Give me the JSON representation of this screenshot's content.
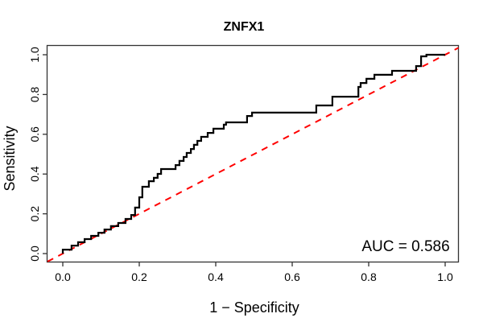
{
  "chart_data": {
    "type": "line",
    "title": "ZNFX1",
    "xlabel": "1 − Specificity",
    "ylabel": "Sensitivity",
    "annotation": "AUC = 0.586",
    "auc": 0.586,
    "xlim": [
      -0.04,
      1.04
    ],
    "ylim": [
      -0.04,
      1.04
    ],
    "grid": false,
    "legend": "none",
    "x_ticks": {
      "positions": [
        0.0,
        0.2,
        0.4,
        0.6,
        0.8,
        1.0
      ],
      "labels": [
        "0.0",
        "0.2",
        "0.4",
        "0.6",
        "0.8",
        "1.0"
      ]
    },
    "y_ticks": {
      "positions": [
        0.0,
        0.2,
        0.4,
        0.6,
        0.8,
        1.0
      ],
      "labels": [
        "0.0",
        "0.2",
        "0.4",
        "0.6",
        "0.8",
        "1.0"
      ]
    },
    "colors": {
      "roc_curve": "#000000",
      "reference_line": "#FF0000",
      "axis": "#333333",
      "text": "#000000",
      "background": "#FFFFFF"
    },
    "series": [
      {
        "name": "chance-diagonal",
        "style": "dashed",
        "color": "#FF0000",
        "points": [
          [
            -0.04,
            -0.04
          ],
          [
            1.04,
            1.04
          ]
        ]
      },
      {
        "name": "ROC curve",
        "style": "step",
        "color": "#000000",
        "points": [
          [
            0.0,
            0.0
          ],
          [
            0.0,
            0.02
          ],
          [
            0.023,
            0.02
          ],
          [
            0.023,
            0.04
          ],
          [
            0.04,
            0.04
          ],
          [
            0.04,
            0.057
          ],
          [
            0.057,
            0.057
          ],
          [
            0.057,
            0.073
          ],
          [
            0.074,
            0.073
          ],
          [
            0.074,
            0.089
          ],
          [
            0.093,
            0.089
          ],
          [
            0.093,
            0.105
          ],
          [
            0.109,
            0.105
          ],
          [
            0.109,
            0.121
          ],
          [
            0.126,
            0.121
          ],
          [
            0.126,
            0.138
          ],
          [
            0.145,
            0.138
          ],
          [
            0.145,
            0.154
          ],
          [
            0.164,
            0.154
          ],
          [
            0.164,
            0.174
          ],
          [
            0.179,
            0.174
          ],
          [
            0.179,
            0.194
          ],
          [
            0.189,
            0.194
          ],
          [
            0.189,
            0.231
          ],
          [
            0.2,
            0.231
          ],
          [
            0.2,
            0.283
          ],
          [
            0.208,
            0.283
          ],
          [
            0.208,
            0.336
          ],
          [
            0.225,
            0.336
          ],
          [
            0.225,
            0.364
          ],
          [
            0.238,
            0.364
          ],
          [
            0.238,
            0.381
          ],
          [
            0.248,
            0.381
          ],
          [
            0.248,
            0.401
          ],
          [
            0.257,
            0.401
          ],
          [
            0.257,
            0.425
          ],
          [
            0.295,
            0.425
          ],
          [
            0.295,
            0.445
          ],
          [
            0.305,
            0.445
          ],
          [
            0.305,
            0.466
          ],
          [
            0.316,
            0.466
          ],
          [
            0.316,
            0.486
          ],
          [
            0.324,
            0.486
          ],
          [
            0.324,
            0.506
          ],
          [
            0.335,
            0.506
          ],
          [
            0.335,
            0.526
          ],
          [
            0.343,
            0.526
          ],
          [
            0.343,
            0.547
          ],
          [
            0.352,
            0.547
          ],
          [
            0.352,
            0.567
          ],
          [
            0.362,
            0.567
          ],
          [
            0.362,
            0.587
          ],
          [
            0.379,
            0.587
          ],
          [
            0.379,
            0.607
          ],
          [
            0.394,
            0.607
          ],
          [
            0.394,
            0.628
          ],
          [
            0.421,
            0.628
          ],
          [
            0.421,
            0.648
          ],
          [
            0.427,
            0.648
          ],
          [
            0.427,
            0.66
          ],
          [
            0.482,
            0.66
          ],
          [
            0.482,
            0.692
          ],
          [
            0.495,
            0.692
          ],
          [
            0.495,
            0.709
          ],
          [
            0.663,
            0.709
          ],
          [
            0.663,
            0.745
          ],
          [
            0.705,
            0.745
          ],
          [
            0.705,
            0.789
          ],
          [
            0.773,
            0.789
          ],
          [
            0.773,
            0.838
          ],
          [
            0.779,
            0.838
          ],
          [
            0.779,
            0.858
          ],
          [
            0.794,
            0.858
          ],
          [
            0.794,
            0.879
          ],
          [
            0.815,
            0.879
          ],
          [
            0.815,
            0.899
          ],
          [
            0.861,
            0.899
          ],
          [
            0.861,
            0.919
          ],
          [
            0.924,
            0.919
          ],
          [
            0.924,
            0.943
          ],
          [
            0.937,
            0.943
          ],
          [
            0.937,
            0.992
          ],
          [
            0.951,
            0.992
          ],
          [
            0.951,
            1.0
          ],
          [
            1.0,
            1.0
          ]
        ]
      }
    ]
  }
}
